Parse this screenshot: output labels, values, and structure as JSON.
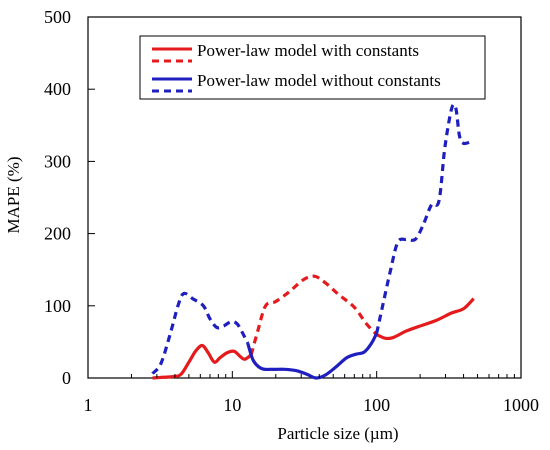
{
  "chart_data": {
    "type": "line",
    "xlabel": "Particle size (µm)",
    "ylabel": "MAPE (%)",
    "xscale": "log",
    "xlim": [
      1,
      1000
    ],
    "ylim": [
      0,
      500
    ],
    "xticks": [
      1,
      10,
      100,
      1000
    ],
    "xtick_labels": [
      "1",
      "10",
      "100",
      "1000"
    ],
    "yticks": [
      0,
      100,
      200,
      300,
      400,
      500
    ],
    "ytick_labels": [
      "0",
      "100",
      "200",
      "300",
      "400",
      "500"
    ],
    "grid": false,
    "legend_position": "top-right",
    "legend": [
      {
        "label": "Power-law model with constants",
        "color": "#e41a1c",
        "style": "solid"
      },
      {
        "label": "",
        "color": "#e41a1c",
        "style": "dashed"
      },
      {
        "label": "Power-law model without constants",
        "color": "#1f1fbf",
        "style": "solid"
      },
      {
        "label": "",
        "color": "#1f1fbf",
        "style": "dashed"
      }
    ],
    "series": [
      {
        "color": "#e41a1c",
        "style": "solid",
        "points": [
          [
            2.8,
            0
          ],
          [
            3.3,
            1
          ],
          [
            3.9,
            2
          ],
          [
            4.4,
            5
          ],
          [
            5.0,
            22
          ],
          [
            5.6,
            38
          ],
          [
            6.2,
            45
          ],
          [
            6.8,
            35
          ],
          [
            7.5,
            22
          ],
          [
            8.2,
            28
          ],
          [
            9.2,
            35
          ],
          [
            10.3,
            37
          ],
          [
            11.3,
            30
          ],
          [
            12.2,
            26
          ],
          [
            13.5,
            32
          ]
        ]
      },
      {
        "color": "#e41a1c",
        "style": "dashed",
        "points": [
          [
            13.5,
            32
          ],
          [
            15.0,
            65
          ],
          [
            17.0,
            100
          ],
          [
            20.0,
            106
          ],
          [
            25.0,
            120
          ],
          [
            31.0,
            136
          ],
          [
            37.0,
            141
          ],
          [
            44.0,
            132
          ],
          [
            55.0,
            115
          ],
          [
            70.0,
            98
          ],
          [
            85.0,
            75
          ],
          [
            100.0,
            60
          ]
        ]
      },
      {
        "color": "#e41a1c",
        "style": "solid",
        "points": [
          [
            100.0,
            60
          ],
          [
            115.0,
            55
          ],
          [
            130.0,
            56
          ],
          [
            160.0,
            65
          ],
          [
            200.0,
            72
          ],
          [
            260.0,
            80
          ],
          [
            330.0,
            90
          ],
          [
            400.0,
            96
          ],
          [
            470.0,
            110
          ]
        ]
      },
      {
        "color": "#1f1fbf",
        "style": "dashed",
        "points": [
          [
            2.8,
            6
          ],
          [
            3.2,
            20
          ],
          [
            3.7,
            60
          ],
          [
            4.2,
            100
          ],
          [
            4.6,
            117
          ],
          [
            5.3,
            110
          ],
          [
            6.3,
            100
          ],
          [
            7.0,
            82
          ],
          [
            7.8,
            70
          ],
          [
            8.7,
            72
          ],
          [
            9.8,
            78
          ],
          [
            10.8,
            75
          ],
          [
            11.8,
            62
          ],
          [
            12.8,
            48
          ]
        ]
      },
      {
        "color": "#1f1fbf",
        "style": "solid",
        "points": [
          [
            12.8,
            48
          ],
          [
            14.0,
            24
          ],
          [
            16.0,
            13
          ],
          [
            19.0,
            12
          ],
          [
            23.0,
            12
          ],
          [
            28.0,
            10
          ],
          [
            33.0,
            5
          ],
          [
            38.0,
            0
          ],
          [
            44.0,
            4
          ],
          [
            52.0,
            15
          ],
          [
            62.0,
            28
          ],
          [
            72.0,
            33
          ],
          [
            82.0,
            36
          ],
          [
            92.0,
            48
          ],
          [
            100.0,
            62
          ]
        ]
      },
      {
        "color": "#1f1fbf",
        "style": "dashed",
        "points": [
          [
            100.0,
            62
          ],
          [
            110.0,
            100
          ],
          [
            125.0,
            150
          ],
          [
            140.0,
            188
          ],
          [
            160.0,
            192
          ],
          [
            185.0,
            192
          ],
          [
            210.0,
            212
          ],
          [
            240.0,
            240
          ],
          [
            270.0,
            245
          ],
          [
            295.0,
            315
          ],
          [
            320.0,
            360
          ],
          [
            338.0,
            378
          ],
          [
            355.0,
            372
          ],
          [
            375.0,
            335
          ],
          [
            400.0,
            325
          ],
          [
            460.0,
            328
          ]
        ]
      }
    ]
  }
}
